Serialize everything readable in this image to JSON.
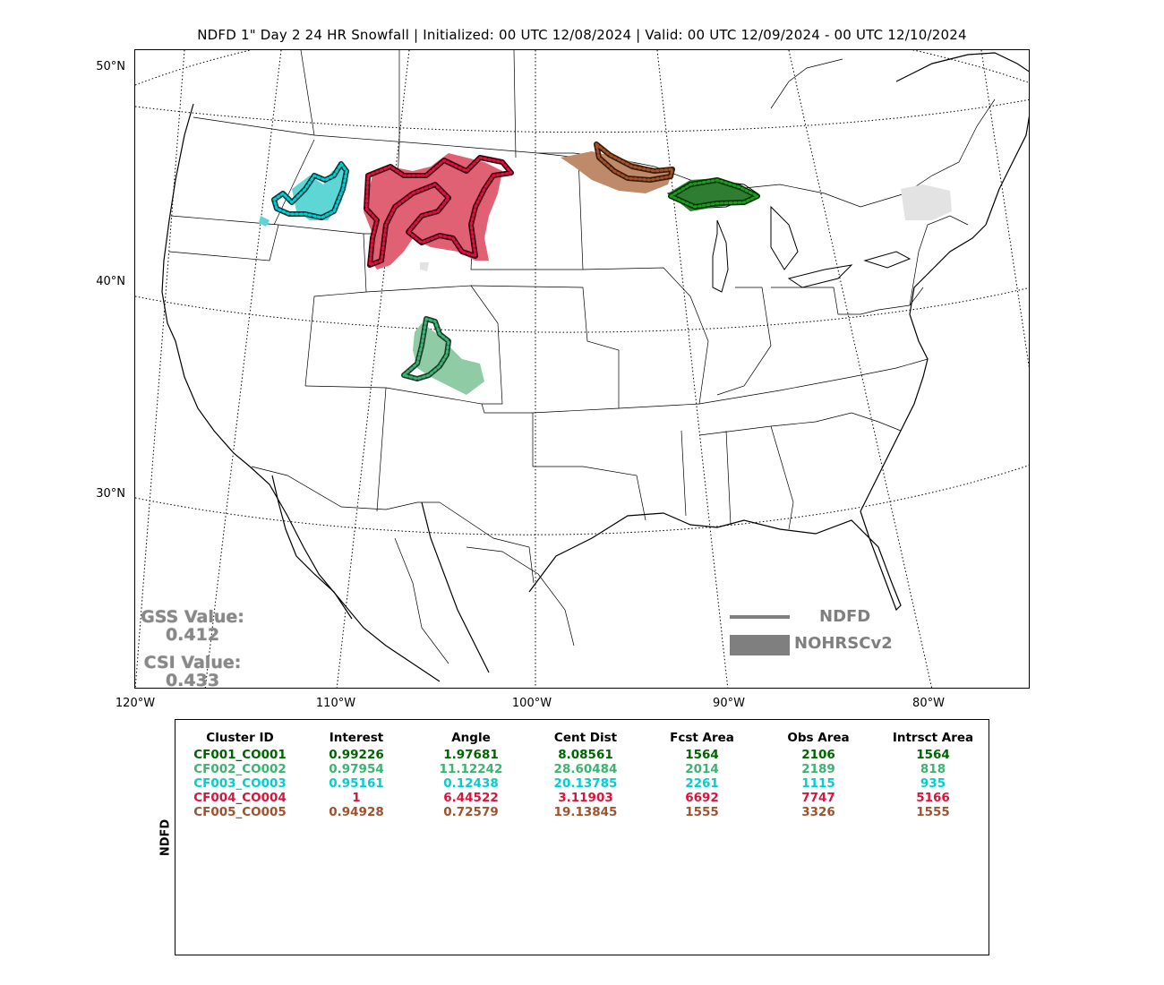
{
  "title": "NDFD 1\" Day 2 24 HR Snowfall | Initialized: 00 UTC 12/08/2024 | Valid: 00 UTC 12/09/2024 - 00 UTC 12/10/2024",
  "lat_labels": [
    "50°N",
    "40°N",
    "30°N"
  ],
  "lon_labels": [
    "120°W",
    "110°W",
    "100°W",
    "90°W",
    "80°W"
  ],
  "stats": {
    "gss_label": "GSS Value:",
    "gss_value": "0.412",
    "csi_label": "CSI Value:",
    "csi_value": "0.433"
  },
  "legend": {
    "line_label": "NDFD",
    "box_label": "NOHRSCv2",
    "color": "#7f7f7f"
  },
  "table": {
    "side_label": "NDFD",
    "headers": [
      "Cluster ID",
      "Interest",
      "Angle",
      "Cent Dist",
      "Fcst Area",
      "Obs Area",
      "Intrsct Area"
    ],
    "rows": [
      {
        "color": "#006400",
        "cells": [
          "CF001_CO001",
          "0.99226",
          "1.97681",
          "8.08561",
          "1564",
          "2106",
          "1564"
        ]
      },
      {
        "color": "#3cb371",
        "cells": [
          "CF002_CO002",
          "0.97954",
          "11.12242",
          "28.60484",
          "2014",
          "2189",
          "818"
        ]
      },
      {
        "color": "#00ced1",
        "cells": [
          "CF003_CO003",
          "0.95161",
          "0.12438",
          "20.13785",
          "2261",
          "1115",
          "935"
        ]
      },
      {
        "color": "#dc143c",
        "cells": [
          "CF004_CO004",
          "1",
          "6.44522",
          "3.11903",
          "6692",
          "7747",
          "5166"
        ]
      },
      {
        "color": "#a0522d",
        "cells": [
          "CF005_CO005",
          "0.94928",
          "0.72579",
          "19.13845",
          "1555",
          "3326",
          "1555"
        ]
      }
    ]
  },
  "clusters": [
    {
      "id": "CF001_CO001",
      "color": "#006400",
      "fill": "#2e7d32"
    },
    {
      "id": "CF002_CO002",
      "color": "#2e8b57",
      "fill": "#8fcca6"
    },
    {
      "id": "CF003_CO003",
      "color": "#00ced1",
      "fill": "#5fd6d6"
    },
    {
      "id": "CF004_CO004",
      "color": "#dc143c",
      "fill": "#e06074"
    },
    {
      "id": "CF005_CO005",
      "color": "#8b4513",
      "fill": "#bf8a6a"
    }
  ]
}
